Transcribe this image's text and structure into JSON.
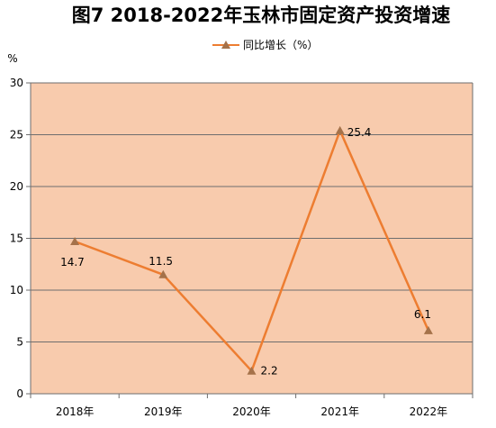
{
  "chart_data": {
    "type": "line",
    "title": "图7  2018-2022年玉林市固定资产投资增速",
    "y_unit": "%",
    "categories": [
      "2018年",
      "2019年",
      "2020年",
      "2021年",
      "2022年"
    ],
    "series": [
      {
        "name": "同比增长（%）",
        "values": [
          14.7,
          11.5,
          2.2,
          25.4,
          6.1
        ]
      }
    ],
    "data_labels": [
      "14.7",
      "11.5",
      "2.2",
      "25.4",
      "6.1"
    ],
    "ylim": [
      0,
      30
    ],
    "yticks": [
      0,
      5,
      10,
      15,
      20,
      25,
      30
    ],
    "grid": true,
    "legend_position": "top-center",
    "plot_background": "#F8CBAD",
    "line_color": "#ED7D31",
    "marker_color": "#A5724A"
  }
}
